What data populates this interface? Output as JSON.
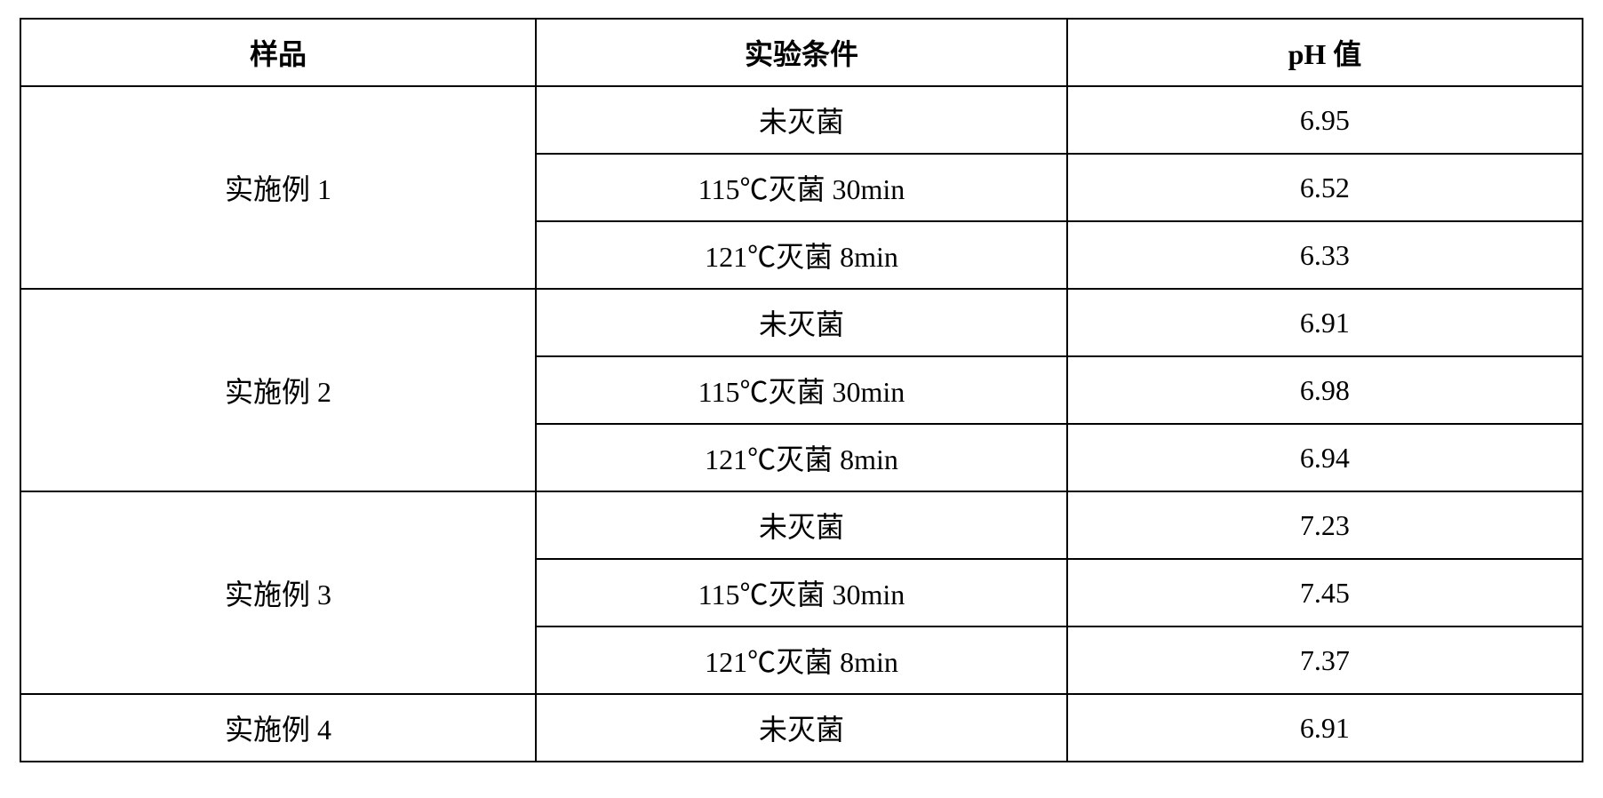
{
  "table": {
    "headers": {
      "sample": "样品",
      "condition": "实验条件",
      "ph_prefix": "pH",
      "ph_suffix": " 值"
    },
    "groups": [
      {
        "sample": "实施例 1",
        "rows": [
          {
            "condition": "未灭菌",
            "ph": "6.95"
          },
          {
            "condition": "115℃灭菌 30min",
            "ph": "6.52"
          },
          {
            "condition": "121℃灭菌 8min",
            "ph": "6.33"
          }
        ]
      },
      {
        "sample": "实施例 2",
        "rows": [
          {
            "condition": "未灭菌",
            "ph": "6.91"
          },
          {
            "condition": "115℃灭菌 30min",
            "ph": "6.98"
          },
          {
            "condition": "121℃灭菌 8min",
            "ph": "6.94"
          }
        ]
      },
      {
        "sample": "实施例 3",
        "rows": [
          {
            "condition": "未灭菌",
            "ph": "7.23"
          },
          {
            "condition": "115℃灭菌 30min",
            "ph": "7.45"
          },
          {
            "condition": "121℃灭菌 8min",
            "ph": "7.37"
          }
        ]
      },
      {
        "sample": "实施例 4",
        "rows": [
          {
            "condition": "未灭菌",
            "ph": "6.91"
          }
        ]
      }
    ],
    "styling": {
      "border_color": "#000000",
      "border_width": 2,
      "background_color": "#ffffff",
      "font_size": 32,
      "header_font_weight": "bold",
      "cell_font_weight": "normal",
      "text_align": "center",
      "column_widths": [
        "33%",
        "34%",
        "33%"
      ]
    }
  }
}
